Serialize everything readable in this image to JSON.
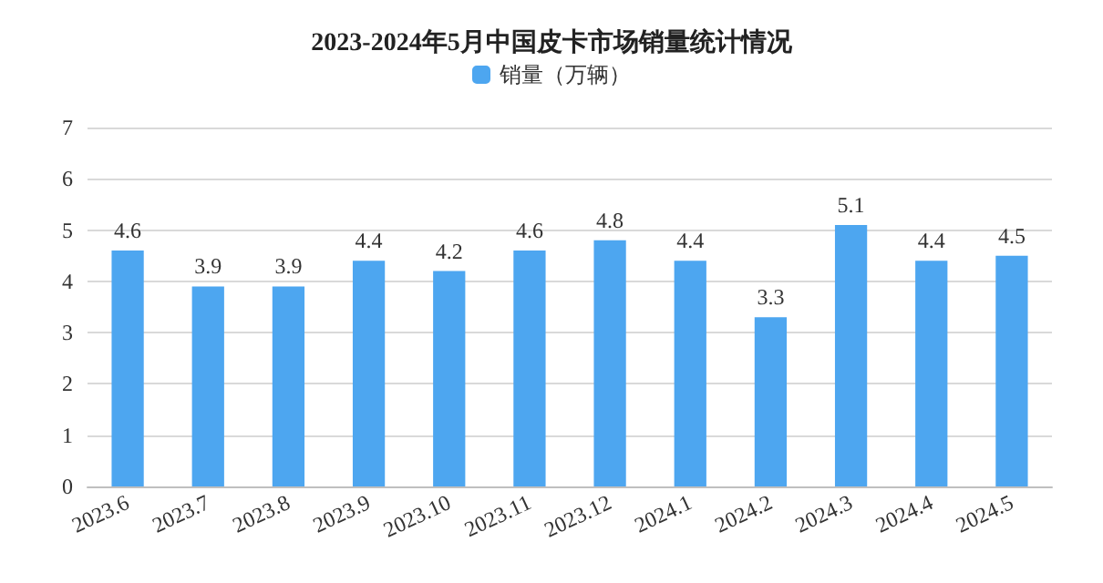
{
  "chart_data": {
    "type": "bar",
    "title": "2023-2024年5月中国皮卡市场销量统计情况",
    "categories": [
      "2023.6",
      "2023.7",
      "2023.8",
      "2023.9",
      "2023.10",
      "2023.11",
      "2023.12",
      "2024.1",
      "2024.2",
      "2024.3",
      "2024.4",
      "2024.5"
    ],
    "series": [
      {
        "name": "销量（万辆）",
        "color": "#4da6f0",
        "values": [
          4.6,
          3.9,
          3.9,
          4.4,
          4.2,
          4.6,
          4.8,
          4.4,
          3.3,
          5.1,
          4.4,
          4.5
        ]
      }
    ],
    "ylim": [
      0,
      7
    ],
    "yticks": [
      0,
      1,
      2,
      3,
      4,
      5,
      6,
      7
    ],
    "grid": "y",
    "legend": "top",
    "data_labels": true
  }
}
